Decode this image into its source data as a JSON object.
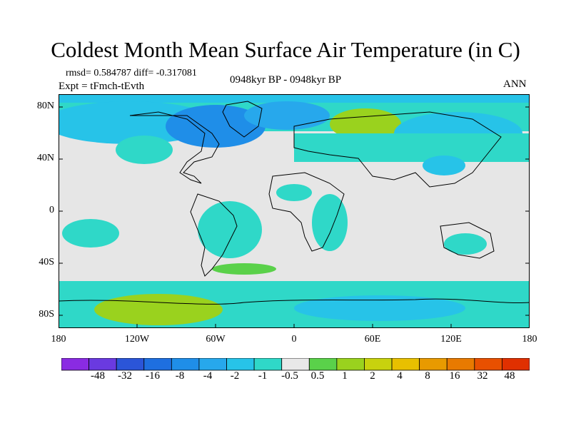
{
  "title": "Coldest Month Mean Surface Air Temperature (in C)",
  "stats": {
    "rmsd_label": "rmsd= 0.584787",
    "diff_label": "diff= -0.317081"
  },
  "experiment": "Expt = tFmch-tEvth",
  "period": "0948kyr BP - 0948kyr BP",
  "season": "ANN",
  "axes": {
    "lat_labels": [
      "80N",
      "40N",
      "0",
      "40S",
      "80S"
    ],
    "lon_labels": [
      "180",
      "120W",
      "60W",
      "0",
      "60E",
      "120E",
      "180"
    ]
  },
  "colorbar": {
    "labels": [
      "-48",
      "-32",
      "-16",
      "-8",
      "-4",
      "-2",
      "-1",
      "-0.5",
      "0.5",
      "1",
      "2",
      "4",
      "8",
      "16",
      "32",
      "48"
    ],
    "colors": [
      "#8a2be2",
      "#6a3ae0",
      "#2b55d8",
      "#1e6fe0",
      "#1f8ee8",
      "#27a8ec",
      "#27c3e8",
      "#2fd8c8",
      "#e8e8e8",
      "#5ad14a",
      "#9ad21e",
      "#c8d20e",
      "#e8c000",
      "#e89a00",
      "#e87a00",
      "#e85000",
      "#e03000"
    ]
  },
  "map_colors": {
    "neutral": "#e6e6e6",
    "cool1": "#2fd8c8",
    "cool2": "#27c3e8",
    "cool3": "#27a8ec",
    "cool4": "#1f8ee8",
    "warm1": "#5ad14a",
    "warm2": "#9ad21e"
  }
}
